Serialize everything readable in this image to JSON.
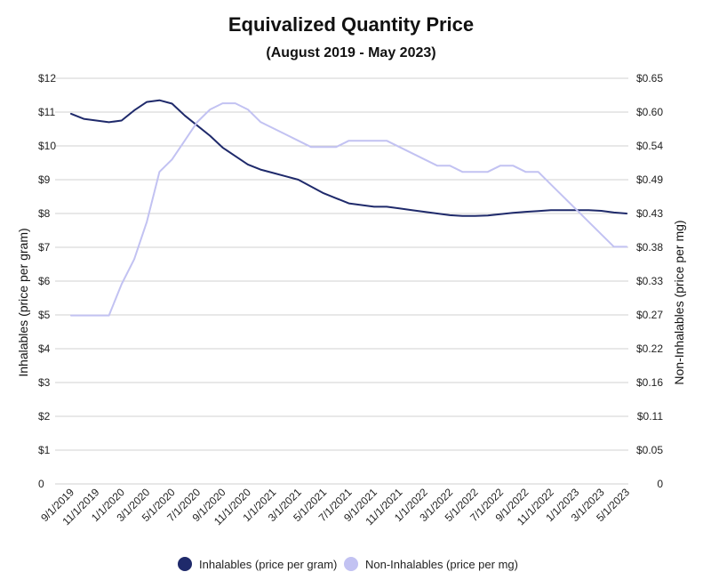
{
  "chart_data": {
    "type": "line",
    "title": "Equivalized Quantity Price",
    "subtitle": "(August 2019 - May 2023)",
    "ylabel_left": "Inhalables (price per gram)",
    "ylabel_right": "Non-Inhalables (price per mg)",
    "ylim_left": [
      0,
      12
    ],
    "ylim_right": [
      0,
      0.65
    ],
    "left_ticks": [
      {
        "value": 0,
        "label": "0"
      },
      {
        "value": 1,
        "label": "$1"
      },
      {
        "value": 2,
        "label": "$2"
      },
      {
        "value": 3,
        "label": "$3"
      },
      {
        "value": 4,
        "label": "$4"
      },
      {
        "value": 5,
        "label": "$5"
      },
      {
        "value": 6,
        "label": "$6"
      },
      {
        "value": 7,
        "label": "$7"
      },
      {
        "value": 8,
        "label": "$8"
      },
      {
        "value": 9,
        "label": "$9"
      },
      {
        "value": 10,
        "label": "$10"
      },
      {
        "value": 11,
        "label": "$11"
      },
      {
        "value": 12,
        "label": "$12"
      }
    ],
    "right_tick_labels": [
      "0",
      "$0.05",
      "$0.11",
      "$0.16",
      "$0.22",
      "$0.27",
      "$0.33",
      "$0.38",
      "$0.43",
      "$0.49",
      "$0.54",
      "$0.60",
      "$0.65"
    ],
    "x_tick_labels": [
      "9/1/2019",
      "11/1/2019",
      "1/1/2020",
      "3/1/2020",
      "5/1/2020",
      "7/1/2020",
      "9/1/2020",
      "11/1/2020",
      "1/1/2021",
      "3/1/2021",
      "5/1/2021",
      "7/1/2021",
      "9/1/2021",
      "11/1/2021",
      "1/1/2022",
      "3/1/2022",
      "5/1/2022",
      "7/1/2022",
      "9/1/2022",
      "11/1/2022",
      "1/1/2023",
      "3/1/2023",
      "5/1/2023"
    ],
    "x_range_months": [
      0,
      44
    ],
    "series": [
      {
        "name": "Inhalables (price per gram)",
        "axis": "left",
        "color": "#1f2a6b",
        "months": [
          0,
          1,
          2,
          3,
          4,
          5,
          6,
          7,
          8,
          9,
          10,
          11,
          12,
          13,
          14,
          15,
          16,
          17,
          18,
          19,
          20,
          21,
          22,
          23,
          24,
          25,
          26,
          27,
          28,
          29,
          30,
          31,
          32,
          33,
          34,
          35,
          36,
          37,
          38,
          39,
          40,
          41,
          42,
          43,
          44
        ],
        "values": [
          10.95,
          10.8,
          10.75,
          10.7,
          10.75,
          11.05,
          11.3,
          11.35,
          11.25,
          10.9,
          10.6,
          10.3,
          9.95,
          9.7,
          9.45,
          9.3,
          9.2,
          9.1,
          9.0,
          8.8,
          8.6,
          8.45,
          8.3,
          8.25,
          8.2,
          8.2,
          8.15,
          8.1,
          8.05,
          8.0,
          7.95,
          7.93,
          7.93,
          7.94,
          7.98,
          8.02,
          8.05,
          8.07,
          8.1,
          8.1,
          8.1,
          8.1,
          8.08,
          8.03,
          8.0
        ]
      },
      {
        "name": "Non-Inhalables (price per mg)",
        "axis": "right",
        "color": "#c2c2f2",
        "months": [
          0,
          1,
          2,
          3,
          4,
          5,
          6,
          7,
          8,
          9,
          10,
          11,
          12,
          13,
          14,
          15,
          16,
          17,
          18,
          19,
          20,
          21,
          22,
          23,
          24,
          25,
          26,
          27,
          28,
          29,
          30,
          31,
          32,
          33,
          34,
          35,
          36,
          37,
          38,
          39,
          40,
          41,
          42,
          43,
          44
        ],
        "values": [
          0.27,
          0.27,
          0.27,
          0.27,
          0.32,
          0.36,
          0.42,
          0.5,
          0.52,
          0.55,
          0.58,
          0.6,
          0.61,
          0.61,
          0.6,
          0.58,
          0.57,
          0.56,
          0.55,
          0.54,
          0.54,
          0.54,
          0.55,
          0.55,
          0.55,
          0.55,
          0.54,
          0.53,
          0.52,
          0.51,
          0.51,
          0.5,
          0.5,
          0.5,
          0.51,
          0.51,
          0.5,
          0.5,
          0.48,
          0.46,
          0.44,
          0.42,
          0.4,
          0.38,
          0.38
        ]
      }
    ],
    "legend": [
      {
        "label": "Inhalables (price per gram)",
        "color": "#1f2a6b"
      },
      {
        "label": "Non-Inhalables (price per mg)",
        "color": "#c2c2f2"
      }
    ],
    "legend_position": "bottom-center",
    "grid": true
  }
}
